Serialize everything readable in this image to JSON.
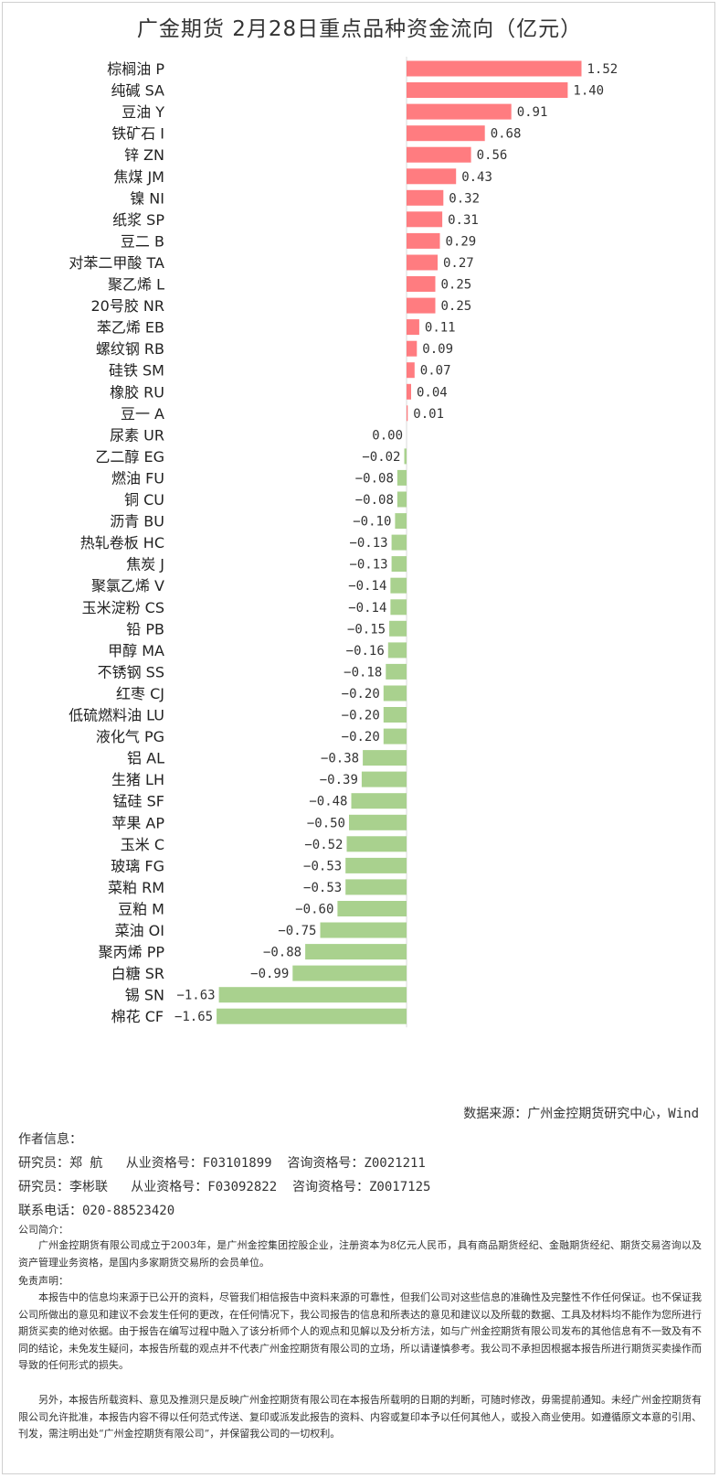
{
  "title": "广金期货 2月28日重点品种资金流向（亿元）",
  "chart_data": {
    "type": "bar",
    "orientation": "horizontal",
    "categories": [
      "棕榈油 P",
      "纯碱 SA",
      "豆油 Y",
      "铁矿石 I",
      "锌 ZN",
      "焦煤 JM",
      "镍 NI",
      "纸浆 SP",
      "豆二 B",
      "对苯二甲酸 TA",
      "聚乙烯 L",
      "20号胶 NR",
      "苯乙烯 EB",
      "螺纹钢 RB",
      "硅铁 SM",
      "橡胶 RU",
      "豆一 A",
      "尿素 UR",
      "乙二醇 EG",
      "燃油 FU",
      "铜 CU",
      "沥青 BU",
      "热轧卷板 HC",
      "焦炭 J",
      "聚氯乙烯 V",
      "玉米淀粉 CS",
      "铅 PB",
      "甲醇 MA",
      "不锈钢 SS",
      "红枣 CJ",
      "低硫燃料油 LU",
      "液化气 PG",
      "铝 AL",
      "生猪 LH",
      "锰硅 SF",
      "苹果 AP",
      "玉米 C",
      "玻璃 FG",
      "菜粕 RM",
      "豆粕 M",
      "菜油 OI",
      "聚丙烯 PP",
      "白糖 SR",
      "锡 SN",
      "棉花 CF"
    ],
    "values": [
      1.52,
      1.4,
      0.91,
      0.68,
      0.56,
      0.43,
      0.32,
      0.31,
      0.29,
      0.27,
      0.25,
      0.25,
      0.11,
      0.09,
      0.07,
      0.04,
      0.01,
      0.0,
      -0.02,
      -0.08,
      -0.08,
      -0.1,
      -0.13,
      -0.13,
      -0.14,
      -0.14,
      -0.15,
      -0.16,
      -0.18,
      -0.2,
      -0.2,
      -0.2,
      -0.38,
      -0.39,
      -0.48,
      -0.5,
      -0.52,
      -0.53,
      -0.53,
      -0.6,
      -0.75,
      -0.88,
      -0.99,
      -1.63,
      -1.65
    ],
    "value_labels": [
      "1.52",
      "1.40",
      "0.91",
      "0.68",
      "0.56",
      "0.43",
      "0.32",
      "0.31",
      "0.29",
      "0.27",
      "0.25",
      "0.25",
      "0.11",
      "0.09",
      "0.07",
      "0.04",
      "0.01",
      "0.00",
      "−0.02",
      "−0.08",
      "−0.08",
      "−0.10",
      "−0.13",
      "−0.13",
      "−0.14",
      "−0.14",
      "−0.15",
      "−0.16",
      "−0.18",
      "−0.20",
      "−0.20",
      "−0.20",
      "−0.38",
      "−0.39",
      "−0.48",
      "−0.50",
      "−0.52",
      "−0.53",
      "−0.53",
      "−0.60",
      "−0.75",
      "−0.88",
      "−0.99",
      "−1.63",
      "−1.65"
    ],
    "colors": {
      "positive": "#ff7c80",
      "negative": "#a9d18e"
    },
    "grid": false
  },
  "source": "数据来源：广州金控期货研究中心，Wind",
  "author": {
    "heading": "作者信息：",
    "lines": [
      "研究员：郑 航   从业资格号：F03101899  咨询资格号：Z0021211",
      "研究员：李彬联   从业资格号：F03092822  咨询资格号：Z0017125"
    ],
    "phone": "联系电话：020-88523420"
  },
  "company": {
    "heading": "公司简介：",
    "text": "广州金控期货有限公司成立于2003年，是广州金控集团控股企业，注册资本为8亿元人民币，具有商品期货经纪、金融期货经纪、期货交易咨询以及资产管理业务资格，是国内多家期货交易所的会员单位。"
  },
  "disclaimer": {
    "heading": "免责声明：",
    "p1": "本报告中的信息均来源于已公开的资料，尽管我们相信报告中资料来源的可靠性，但我们公司对这些信息的准确性及完整性不作任何保证。也不保证我公司所做出的意见和建议不会发生任何的更改，在任何情况下，我公司报告的信息和所表达的意见和建议以及所载的数据、工具及材料均不能作为您所进行期货买卖的绝对依据。由于报告在编写过程中融入了该分析师个人的观点和见解以及分析方法，如与广州金控期货有限公司发布的其他信息有不一致及有不同的结论，未免发生疑问，本报告所载的观点并不代表广州金控期货有限公司的立场，所以请谨慎参考。我公司不承担因根据本报告所进行期货买卖操作而导致的任何形式的损失。",
    "p2": "另外，本报告所载资料、意见及推测只是反映广州金控期货有限公司在本报告所载明的日期的判断，可随时修改，毋需提前通知。未经广州金控期货有限公司允许批准，本报告内容不得以任何范式传送、复印或派发此报告的资料、内容或复印本予以任何其他人，或投入商业使用。如遵循原文本意的引用、刊发，需注明出处“广州金控期货有限公司”，并保留我公司的一切权利。"
  }
}
